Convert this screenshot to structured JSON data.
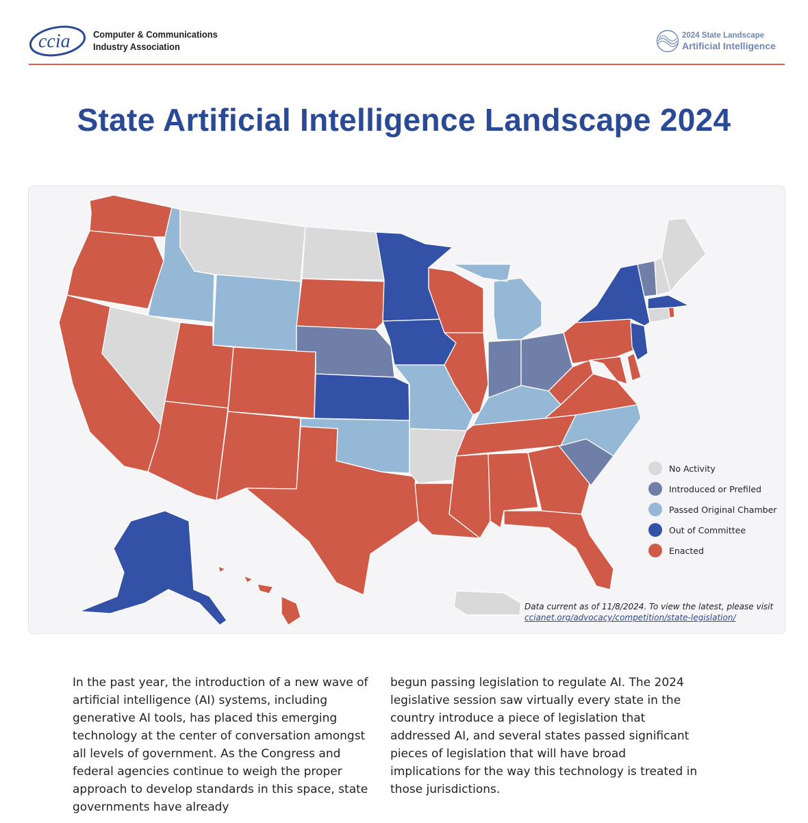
{
  "header": {
    "logo_text": "ccia",
    "org_name_line1": "Computer & Communications",
    "org_name_line2": "Industry Association",
    "badge_line1": "2024 State Landscape",
    "badge_line2": "Artificial Intelligence"
  },
  "title": "State Artificial Intelligence Landscape 2024",
  "colors": {
    "no_activity": "#d9d9d9",
    "introduced": "#6f7fa8",
    "passed_chamber": "#94b8d6",
    "out_of_committee": "#3351a6",
    "enacted": "#cf5a48",
    "accent": "#2b4a95",
    "rule": "#d9614c"
  },
  "legend": [
    {
      "label": "No Activity",
      "color": "#d9d9d9"
    },
    {
      "label": "Introduced or Prefiled",
      "color": "#6f7fa8"
    },
    {
      "label": "Passed Original Chamber",
      "color": "#94b8d6"
    },
    {
      "label": "Out of Committee",
      "color": "#3351a6"
    },
    {
      "label": "Enacted",
      "color": "#cf5a48"
    }
  ],
  "states": {
    "WA": "enacted",
    "OR": "enacted",
    "CA": "enacted",
    "ID": "passed_chamber",
    "NV": "no_activity",
    "MT": "no_activity",
    "WY": "passed_chamber",
    "UT": "enacted",
    "AZ": "enacted",
    "CO": "enacted",
    "NM": "enacted",
    "ND": "no_activity",
    "SD": "enacted",
    "NE": "introduced",
    "KS": "out_of_committee",
    "OK": "passed_chamber",
    "TX": "enacted",
    "MN": "out_of_committee",
    "IA": "out_of_committee",
    "MO": "passed_chamber",
    "AR": "no_activity",
    "LA": "enacted",
    "WI": "enacted",
    "IL": "enacted",
    "MI": "passed_chamber",
    "IN": "introduced",
    "OH": "introduced",
    "KY": "passed_chamber",
    "TN": "enacted",
    "MS": "enacted",
    "AL": "enacted",
    "GA": "enacted",
    "FL": "enacted",
    "SC": "introduced",
    "NC": "passed_chamber",
    "VA": "enacted",
    "WV": "enacted",
    "MD": "enacted",
    "DE": "enacted",
    "PA": "enacted",
    "NJ": "out_of_committee",
    "NY": "out_of_committee",
    "CT": "no_activity",
    "RI": "enacted",
    "MA": "out_of_committee",
    "VT": "introduced",
    "NH": "no_activity",
    "ME": "no_activity",
    "AK": "out_of_committee",
    "HI": "enacted",
    "PR": "no_activity"
  },
  "footnote": {
    "text": "Data current as of 11/8/2024. To view the latest, please visit ",
    "link": "ccianet.org/advocacy/competition/state-legislation/"
  },
  "body": {
    "col1": "In the past year, the introduction of a new wave of artificial intelligence (AI) systems, including generative AI tools, has placed this emerging technology at the center of conversation amongst all levels of government. As the Congress and federal agencies continue to weigh the proper approach to develop standards in this space, state governments have already",
    "col2": "begun passing legislation to regulate AI. The 2024 legislative session saw virtually every state in the country introduce a piece of legislation that addressed AI, and several states passed significant pieces of legislation that will have broad implications for the way this technology is treated in those jurisdictions."
  }
}
